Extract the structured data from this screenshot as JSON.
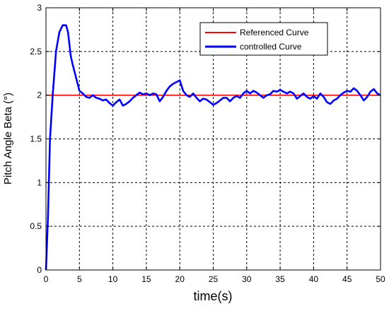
{
  "chart_data": {
    "type": "line",
    "title": "",
    "xlabel": "time(s)",
    "ylabel": "Pitch Angle Beta (°)",
    "xlim": [
      0,
      50
    ],
    "ylim": [
      0,
      3
    ],
    "xticks": [
      0,
      5,
      10,
      15,
      20,
      25,
      30,
      35,
      40,
      45,
      50
    ],
    "yticks": [
      0,
      0.5,
      1,
      1.5,
      2,
      2.5,
      3
    ],
    "xtick_labels": [
      "0",
      "5",
      "10",
      "15",
      "20",
      "25",
      "30",
      "35",
      "40",
      "45",
      "50"
    ],
    "ytick_labels": [
      "0",
      "0.5",
      "1",
      "1.5",
      "2",
      "2.5",
      "3"
    ],
    "grid": true,
    "legend_position": "top-right",
    "series": [
      {
        "name": "Referenced Curve",
        "color": "#ff0000",
        "x": [
          0,
          50
        ],
        "y": [
          2,
          2
        ]
      },
      {
        "name": "controlled Curve",
        "color": "#0000ff",
        "x": [
          0,
          0.3,
          0.6,
          1.0,
          1.5,
          2.0,
          2.5,
          3.0,
          3.3,
          3.7,
          4.0,
          4.5,
          5.0,
          5.5,
          6.0,
          6.5,
          7.0,
          7.5,
          8.0,
          8.5,
          9.0,
          9.5,
          10.0,
          10.5,
          11.0,
          11.5,
          12.0,
          12.5,
          13.0,
          13.5,
          14.0,
          14.5,
          15.0,
          15.5,
          16.0,
          16.5,
          17.0,
          17.5,
          18.0,
          18.5,
          19.0,
          19.5,
          20.0,
          20.5,
          21.0,
          21.5,
          22.0,
          22.5,
          23.0,
          23.5,
          24.0,
          24.5,
          25.0,
          25.5,
          26.0,
          26.5,
          27.0,
          27.5,
          28.0,
          28.5,
          29.0,
          29.5,
          30.0,
          30.5,
          31.0,
          31.5,
          32.0,
          32.5,
          33.0,
          33.5,
          34.0,
          34.5,
          35.0,
          35.5,
          36.0,
          36.5,
          37.0,
          37.5,
          38.0,
          38.5,
          39.0,
          39.5,
          40.0,
          40.5,
          41.0,
          41.5,
          42.0,
          42.5,
          43.0,
          43.5,
          44.0,
          44.5,
          45.0,
          45.5,
          46.0,
          46.5,
          47.0,
          47.5,
          48.0,
          48.5,
          49.0,
          49.5,
          50.0
        ],
        "y": [
          0,
          0.6,
          1.5,
          2.0,
          2.5,
          2.72,
          2.8,
          2.8,
          2.72,
          2.45,
          2.35,
          2.2,
          2.05,
          2.02,
          1.98,
          1.97,
          2.0,
          1.97,
          1.96,
          1.94,
          1.95,
          1.91,
          1.88,
          1.92,
          1.95,
          1.88,
          1.9,
          1.93,
          1.97,
          2.0,
          2.03,
          2.01,
          2.02,
          2.0,
          2.02,
          2.01,
          1.93,
          1.98,
          2.05,
          2.1,
          2.13,
          2.15,
          2.17,
          2.05,
          2.0,
          1.98,
          2.02,
          1.97,
          1.93,
          1.96,
          1.95,
          1.92,
          1.89,
          1.91,
          1.94,
          1.97,
          1.97,
          1.93,
          1.97,
          1.99,
          1.97,
          2.02,
          2.05,
          2.02,
          2.05,
          2.03,
          2.0,
          1.97,
          2.0,
          2.01,
          2.05,
          2.04,
          2.06,
          2.04,
          2.02,
          2.04,
          2.02,
          1.96,
          1.99,
          2.02,
          1.98,
          1.96,
          1.99,
          1.96,
          2.02,
          1.98,
          1.92,
          1.9,
          1.94,
          1.96,
          2.0,
          2.03,
          2.05,
          2.04,
          2.08,
          2.05,
          2.0,
          1.94,
          1.98,
          2.04,
          2.07,
          2.02,
          2.0
        ]
      }
    ]
  }
}
